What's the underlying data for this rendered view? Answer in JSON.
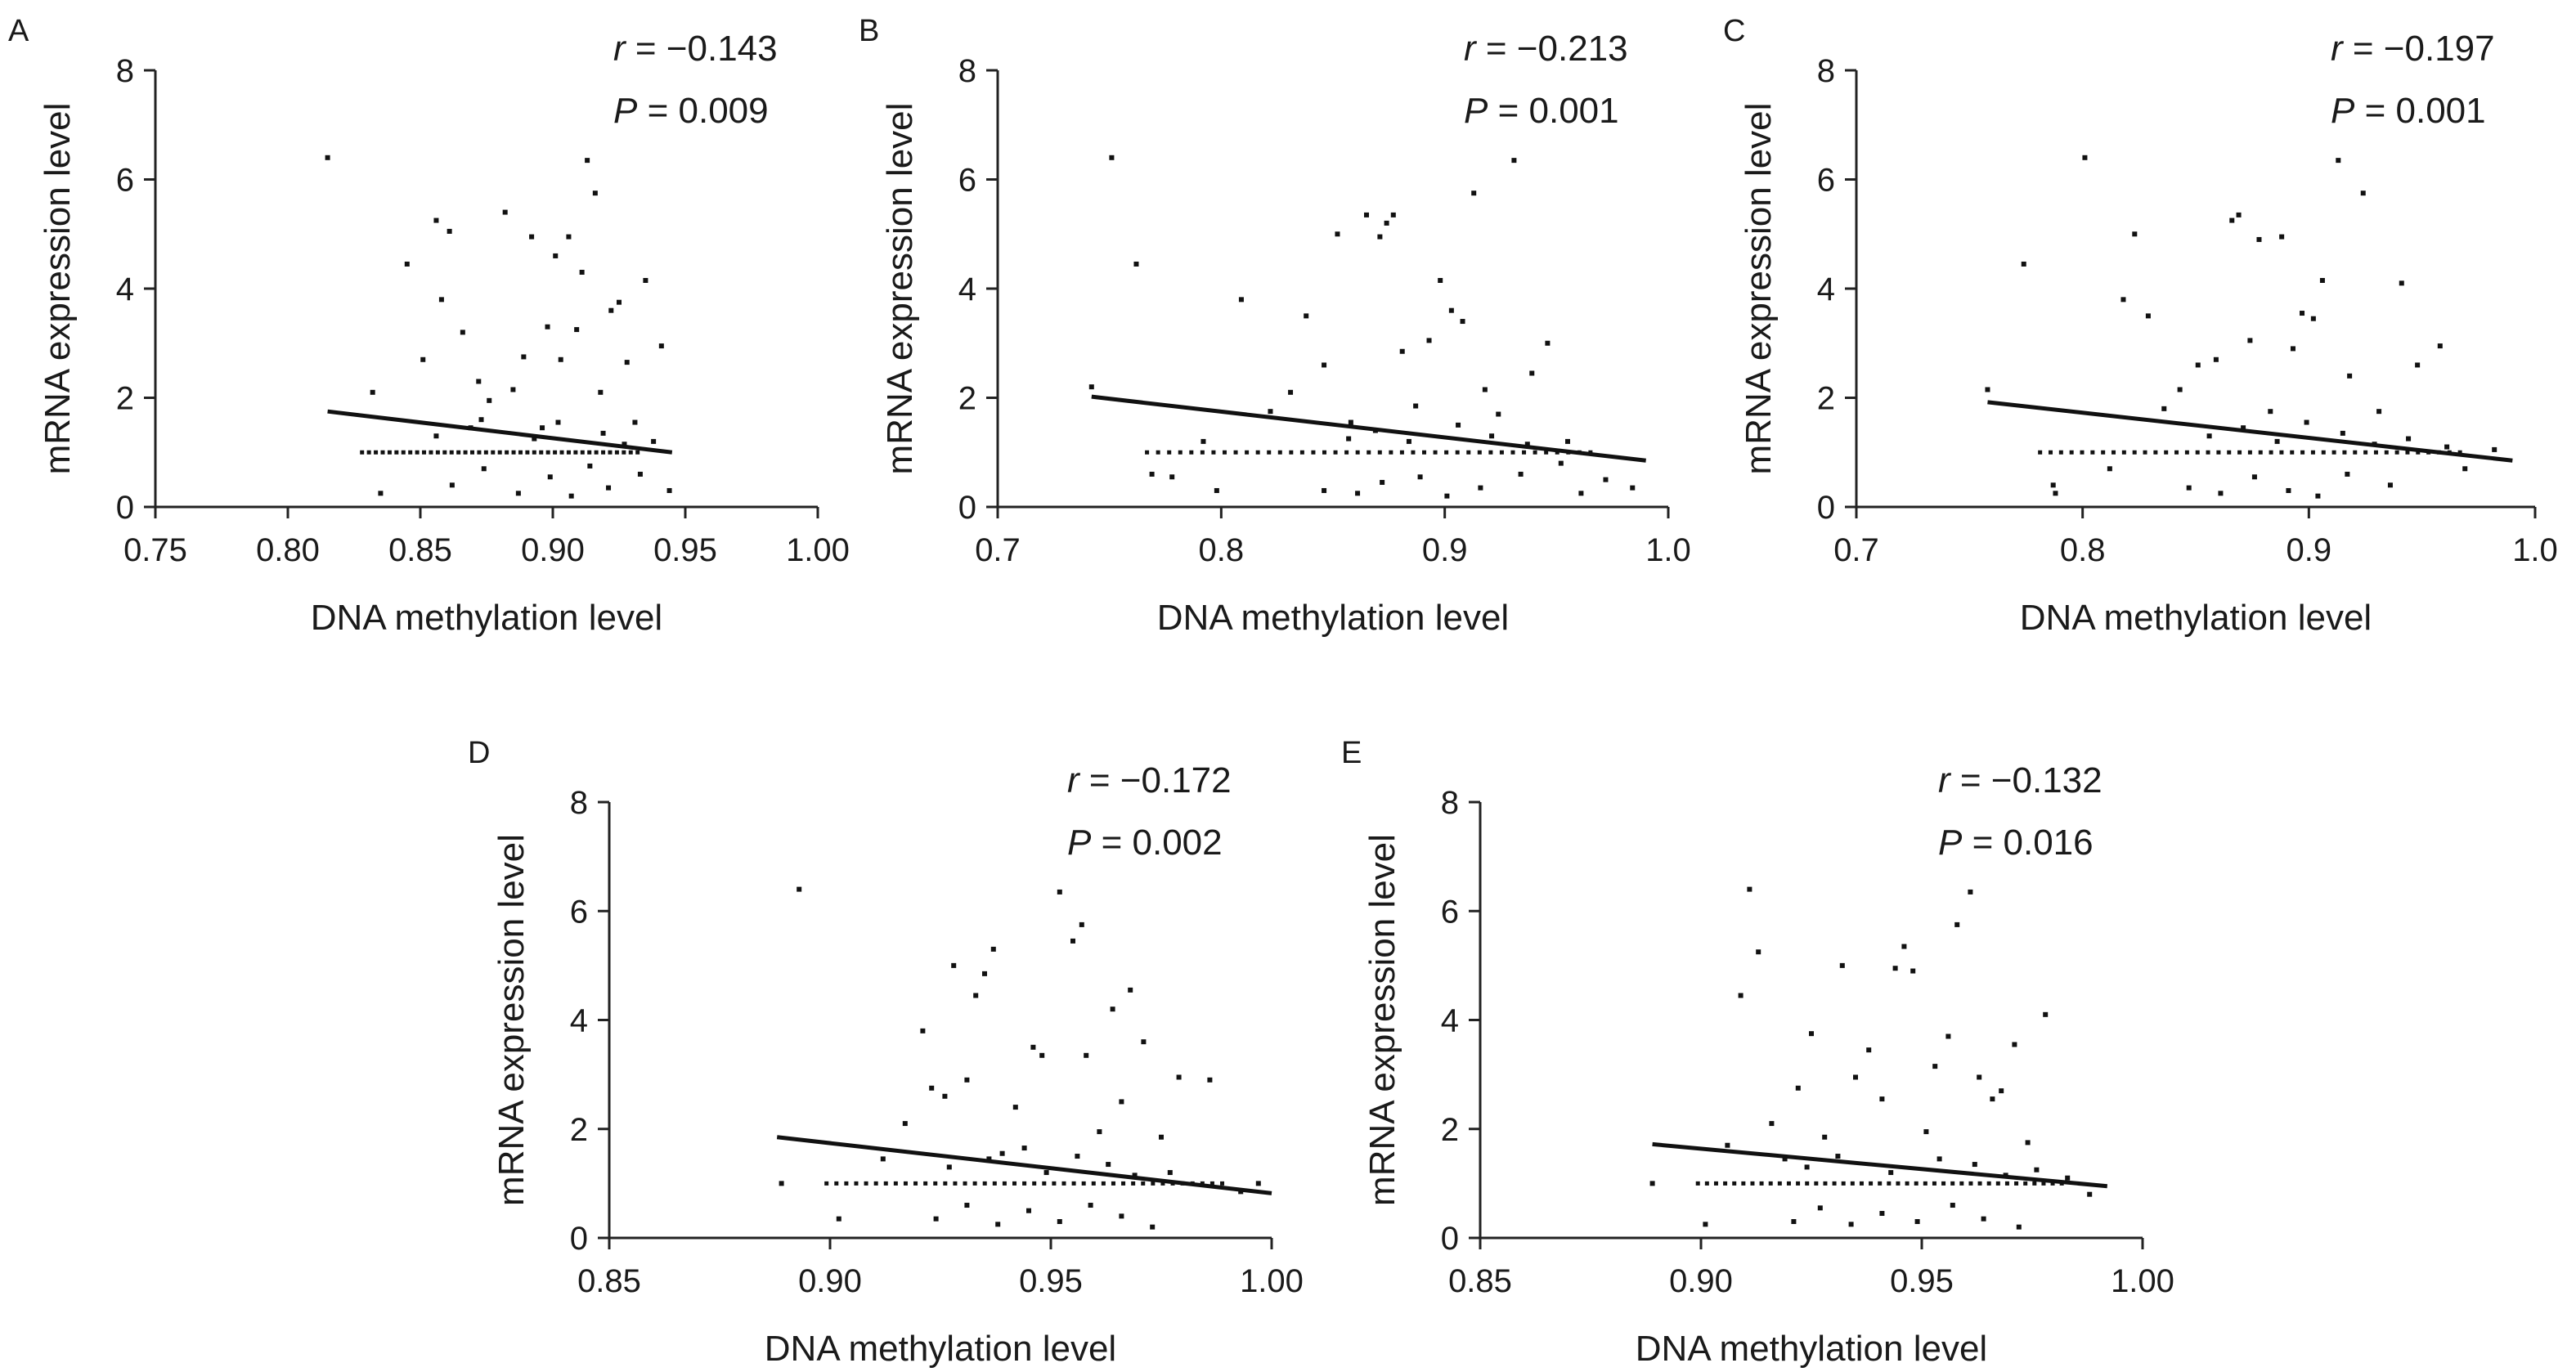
{
  "chart_data": [
    {
      "type": "scatter",
      "panel": "A",
      "xlabel": "DNA methylation level",
      "ylabel": "mRNA expression level",
      "xlim": [
        0.75,
        1.0
      ],
      "ylim": [
        0,
        8
      ],
      "xticks": [
        "0.75",
        "0.80",
        "0.85",
        "0.90",
        "0.95",
        "1.00"
      ],
      "yticks": [
        "0",
        "2",
        "4",
        "6",
        "8"
      ],
      "stats": {
        "r_label": "r",
        "r_value": "= −0.143",
        "p_label": "P",
        "p_value": "= 0.009"
      },
      "fit_line": {
        "x": [
          0.815,
          0.945
        ],
        "y": [
          1.75,
          1.0
        ]
      },
      "points": [
        [
          0.815,
          6.4
        ],
        [
          0.832,
          2.1
        ],
        [
          0.835,
          0.25
        ],
        [
          0.845,
          4.45
        ],
        [
          0.851,
          2.7
        ],
        [
          0.856,
          5.25
        ],
        [
          0.858,
          3.8
        ],
        [
          0.861,
          5.05
        ],
        [
          0.866,
          3.2
        ],
        [
          0.872,
          2.3
        ],
        [
          0.873,
          1.6
        ],
        [
          0.876,
          1.95
        ],
        [
          0.882,
          5.4
        ],
        [
          0.885,
          2.15
        ],
        [
          0.889,
          2.75
        ],
        [
          0.892,
          4.95
        ],
        [
          0.896,
          1.45
        ],
        [
          0.898,
          3.3
        ],
        [
          0.901,
          4.6
        ],
        [
          0.903,
          2.7
        ],
        [
          0.906,
          4.95
        ],
        [
          0.909,
          3.25
        ],
        [
          0.911,
          4.3
        ],
        [
          0.913,
          6.35
        ],
        [
          0.916,
          5.75
        ],
        [
          0.918,
          2.1
        ],
        [
          0.922,
          3.6
        ],
        [
          0.925,
          3.75
        ],
        [
          0.928,
          2.65
        ],
        [
          0.931,
          1.55
        ],
        [
          0.935,
          4.15
        ],
        [
          0.941,
          2.95
        ],
        [
          0.944,
          0.3
        ],
        [
          0.862,
          0.4
        ],
        [
          0.874,
          0.7
        ],
        [
          0.887,
          0.25
        ],
        [
          0.899,
          0.55
        ],
        [
          0.907,
          0.2
        ],
        [
          0.914,
          0.75
        ],
        [
          0.921,
          0.35
        ],
        [
          0.933,
          0.6
        ],
        [
          0.856,
          1.3
        ],
        [
          0.869,
          1.45
        ],
        [
          0.893,
          1.25
        ],
        [
          0.902,
          1.55
        ],
        [
          0.919,
          1.35
        ],
        [
          0.927,
          1.15
        ],
        [
          0.938,
          1.2
        ]
      ]
    },
    {
      "type": "scatter",
      "panel": "B",
      "xlabel": "DNA methylation level",
      "ylabel": "mRNA expression level",
      "xlim": [
        0.7,
        1.0
      ],
      "ylim": [
        0,
        8
      ],
      "xticks": [
        "0.7",
        "0.8",
        "0.9",
        "1.0"
      ],
      "yticks": [
        "0",
        "2",
        "4",
        "6",
        "8"
      ],
      "stats": {
        "r_label": "r",
        "r_value": "= −0.213",
        "p_label": "P",
        "p_value": "= 0.001"
      },
      "fit_line": {
        "x": [
          0.742,
          0.99
        ],
        "y": [
          2.02,
          0.85
        ]
      },
      "points": [
        [
          0.742,
          2.2
        ],
        [
          0.751,
          6.4
        ],
        [
          0.762,
          4.45
        ],
        [
          0.769,
          0.6
        ],
        [
          0.778,
          0.55
        ],
        [
          0.792,
          1.2
        ],
        [
          0.798,
          0.3
        ],
        [
          0.809,
          3.8
        ],
        [
          0.822,
          1.75
        ],
        [
          0.831,
          2.1
        ],
        [
          0.838,
          3.5
        ],
        [
          0.846,
          2.6
        ],
        [
          0.852,
          5.0
        ],
        [
          0.858,
          1.55
        ],
        [
          0.865,
          5.35
        ],
        [
          0.871,
          4.95
        ],
        [
          0.874,
          5.2
        ],
        [
          0.877,
          5.35
        ],
        [
          0.881,
          2.85
        ],
        [
          0.887,
          1.85
        ],
        [
          0.893,
          3.05
        ],
        [
          0.898,
          4.15
        ],
        [
          0.903,
          3.6
        ],
        [
          0.908,
          3.4
        ],
        [
          0.913,
          5.75
        ],
        [
          0.918,
          2.15
        ],
        [
          0.924,
          1.7
        ],
        [
          0.931,
          6.35
        ],
        [
          0.939,
          2.45
        ],
        [
          0.946,
          3.0
        ],
        [
          0.952,
          0.8
        ],
        [
          0.961,
          0.25
        ],
        [
          0.972,
          0.5
        ],
        [
          0.984,
          0.35
        ],
        [
          0.846,
          0.3
        ],
        [
          0.861,
          0.25
        ],
        [
          0.872,
          0.45
        ],
        [
          0.889,
          0.55
        ],
        [
          0.901,
          0.2
        ],
        [
          0.916,
          0.35
        ],
        [
          0.934,
          0.6
        ],
        [
          0.857,
          1.25
        ],
        [
          0.869,
          1.4
        ],
        [
          0.884,
          1.2
        ],
        [
          0.906,
          1.5
        ],
        [
          0.921,
          1.3
        ],
        [
          0.937,
          1.15
        ],
        [
          0.955,
          1.2
        ]
      ]
    },
    {
      "type": "scatter",
      "panel": "C",
      "xlabel": "DNA methylation level",
      "ylabel": "mRNA expression level",
      "xlim": [
        0.7,
        1.0
      ],
      "ylim": [
        0,
        8
      ],
      "xticks": [
        "0.7",
        "0.8",
        "0.9",
        "1.0"
      ],
      "yticks": [
        "0",
        "2",
        "4",
        "6",
        "8"
      ],
      "stats": {
        "r_label": "r",
        "r_value": "= −0.197",
        "p_label": "P",
        "p_value": "= 0.001"
      },
      "fit_line": {
        "x": [
          0.758,
          0.99
        ],
        "y": [
          1.92,
          0.85
        ]
      },
      "points": [
        [
          0.758,
          2.15
        ],
        [
          0.774,
          4.45
        ],
        [
          0.787,
          0.4
        ],
        [
          0.788,
          0.25
        ],
        [
          0.801,
          6.4
        ],
        [
          0.812,
          0.7
        ],
        [
          0.818,
          3.8
        ],
        [
          0.823,
          5.0
        ],
        [
          0.829,
          3.5
        ],
        [
          0.836,
          1.8
        ],
        [
          0.843,
          2.15
        ],
        [
          0.851,
          2.6
        ],
        [
          0.859,
          2.7
        ],
        [
          0.866,
          5.25
        ],
        [
          0.869,
          5.35
        ],
        [
          0.874,
          3.05
        ],
        [
          0.878,
          4.9
        ],
        [
          0.883,
          1.75
        ],
        [
          0.888,
          4.95
        ],
        [
          0.893,
          2.9
        ],
        [
          0.897,
          3.55
        ],
        [
          0.902,
          3.45
        ],
        [
          0.906,
          4.15
        ],
        [
          0.913,
          6.35
        ],
        [
          0.918,
          2.4
        ],
        [
          0.924,
          5.75
        ],
        [
          0.931,
          1.75
        ],
        [
          0.941,
          4.1
        ],
        [
          0.948,
          2.6
        ],
        [
          0.958,
          2.95
        ],
        [
          0.969,
          0.7
        ],
        [
          0.982,
          1.05
        ],
        [
          0.847,
          0.35
        ],
        [
          0.861,
          0.25
        ],
        [
          0.876,
          0.55
        ],
        [
          0.891,
          0.3
        ],
        [
          0.904,
          0.2
        ],
        [
          0.917,
          0.6
        ],
        [
          0.936,
          0.4
        ],
        [
          0.856,
          1.3
        ],
        [
          0.871,
          1.45
        ],
        [
          0.886,
          1.2
        ],
        [
          0.899,
          1.55
        ],
        [
          0.915,
          1.35
        ],
        [
          0.929,
          1.15
        ],
        [
          0.944,
          1.25
        ],
        [
          0.961,
          1.1
        ]
      ]
    },
    {
      "type": "scatter",
      "panel": "D",
      "xlabel": "DNA methylation level",
      "ylabel": "mRNA expression level",
      "xlim": [
        0.85,
        1.0
      ],
      "ylim": [
        0,
        8
      ],
      "xticks": [
        "0.85",
        "0.90",
        "0.95",
        "1.00"
      ],
      "yticks": [
        "0",
        "2",
        "4",
        "6",
        "8"
      ],
      "stats": {
        "r_label": "r",
        "r_value": "= −0.172",
        "p_label": "P",
        "p_value": "= 0.002"
      },
      "fit_line": {
        "x": [
          0.888,
          1.0
        ],
        "y": [
          1.85,
          0.82
        ]
      },
      "points": [
        [
          0.889,
          1.0
        ],
        [
          0.893,
          6.4
        ],
        [
          0.902,
          0.35
        ],
        [
          0.912,
          1.45
        ],
        [
          0.917,
          2.1
        ],
        [
          0.921,
          3.8
        ],
        [
          0.923,
          2.75
        ],
        [
          0.926,
          2.6
        ],
        [
          0.928,
          5.0
        ],
        [
          0.931,
          2.9
        ],
        [
          0.933,
          4.45
        ],
        [
          0.935,
          4.85
        ],
        [
          0.937,
          5.3
        ],
        [
          0.939,
          1.55
        ],
        [
          0.942,
          2.4
        ],
        [
          0.944,
          1.65
        ],
        [
          0.946,
          3.5
        ],
        [
          0.948,
          3.35
        ],
        [
          0.952,
          6.35
        ],
        [
          0.955,
          5.45
        ],
        [
          0.957,
          5.75
        ],
        [
          0.958,
          3.35
        ],
        [
          0.961,
          1.95
        ],
        [
          0.964,
          4.2
        ],
        [
          0.966,
          2.5
        ],
        [
          0.968,
          4.55
        ],
        [
          0.971,
          3.6
        ],
        [
          0.975,
          1.85
        ],
        [
          0.979,
          2.95
        ],
        [
          0.986,
          2.9
        ],
        [
          0.993,
          0.85
        ],
        [
          0.997,
          1.0
        ],
        [
          0.924,
          0.35
        ],
        [
          0.931,
          0.6
        ],
        [
          0.938,
          0.25
        ],
        [
          0.945,
          0.5
        ],
        [
          0.952,
          0.3
        ],
        [
          0.959,
          0.6
        ],
        [
          0.966,
          0.4
        ],
        [
          0.973,
          0.2
        ],
        [
          0.927,
          1.3
        ],
        [
          0.936,
          1.45
        ],
        [
          0.949,
          1.2
        ],
        [
          0.956,
          1.5
        ],
        [
          0.963,
          1.35
        ],
        [
          0.969,
          1.15
        ],
        [
          0.977,
          1.2
        ]
      ]
    },
    {
      "type": "scatter",
      "panel": "E",
      "xlabel": "DNA methylation level",
      "ylabel": "mRNA expression level",
      "xlim": [
        0.85,
        1.0
      ],
      "ylim": [
        0,
        8
      ],
      "xticks": [
        "0.85",
        "0.90",
        "0.95",
        "1.00"
      ],
      "yticks": [
        "0",
        "2",
        "4",
        "6",
        "8"
      ],
      "stats": {
        "r_label": "r",
        "r_value": "= −0.132",
        "p_label": "P",
        "p_value": "= 0.016"
      },
      "fit_line": {
        "x": [
          0.889,
          0.992
        ],
        "y": [
          1.72,
          0.95
        ]
      },
      "points": [
        [
          0.889,
          1.0
        ],
        [
          0.901,
          0.25
        ],
        [
          0.906,
          1.7
        ],
        [
          0.909,
          4.45
        ],
        [
          0.911,
          6.4
        ],
        [
          0.913,
          5.25
        ],
        [
          0.916,
          2.1
        ],
        [
          0.919,
          1.45
        ],
        [
          0.922,
          2.75
        ],
        [
          0.925,
          3.75
        ],
        [
          0.928,
          1.85
        ],
        [
          0.932,
          5.0
        ],
        [
          0.935,
          2.95
        ],
        [
          0.938,
          3.45
        ],
        [
          0.941,
          2.55
        ],
        [
          0.944,
          4.95
        ],
        [
          0.946,
          5.35
        ],
        [
          0.948,
          4.9
        ],
        [
          0.951,
          1.95
        ],
        [
          0.953,
          3.15
        ],
        [
          0.956,
          3.7
        ],
        [
          0.958,
          5.75
        ],
        [
          0.961,
          6.35
        ],
        [
          0.963,
          2.95
        ],
        [
          0.966,
          2.55
        ],
        [
          0.968,
          2.7
        ],
        [
          0.971,
          3.55
        ],
        [
          0.974,
          1.75
        ],
        [
          0.978,
          4.1
        ],
        [
          0.983,
          1.1
        ],
        [
          0.988,
          0.8
        ],
        [
          0.921,
          0.3
        ],
        [
          0.927,
          0.55
        ],
        [
          0.934,
          0.25
        ],
        [
          0.941,
          0.45
        ],
        [
          0.949,
          0.3
        ],
        [
          0.957,
          0.6
        ],
        [
          0.964,
          0.35
        ],
        [
          0.972,
          0.2
        ],
        [
          0.924,
          1.3
        ],
        [
          0.931,
          1.5
        ],
        [
          0.943,
          1.2
        ],
        [
          0.954,
          1.45
        ],
        [
          0.962,
          1.35
        ],
        [
          0.969,
          1.15
        ],
        [
          0.976,
          1.25
        ]
      ]
    }
  ]
}
